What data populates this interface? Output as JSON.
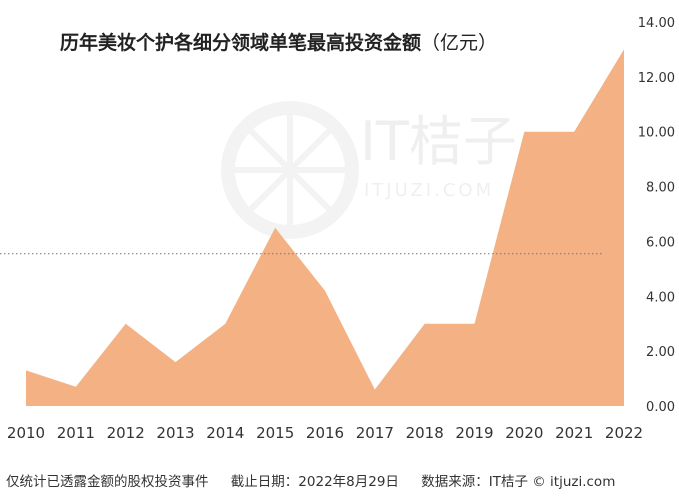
{
  "title": "历年美妆个护各细分领域单笔最高投资金额",
  "unit": "（亿元）",
  "watermark": {
    "brand": "IT桔子",
    "domain": "ITJUZI.COM"
  },
  "footer": {
    "note": "仅统计已透露金额的股权投资事件",
    "date": "截止日期：2022年8月29日",
    "source": "数据来源：IT桔子 © itjuzi.com"
  },
  "colors": {
    "area": "#f4b183",
    "axis_text": "#333333",
    "reference_line": "#777777"
  },
  "chart_data": {
    "type": "area",
    "title": "历年美妆个护各细分领域单笔最高投资金额（亿元）",
    "categories": [
      "2010",
      "2011",
      "2012",
      "2013",
      "2014",
      "2015",
      "2016",
      "2017",
      "2018",
      "2019",
      "2020",
      "2021",
      "2022"
    ],
    "values": [
      1.3,
      0.7,
      3.0,
      1.6,
      3.0,
      6.5,
      4.2,
      0.6,
      3.0,
      3.0,
      10.0,
      10.0,
      13.0
    ],
    "ylim": [
      0,
      14
    ],
    "yticks": [
      "0.00",
      "2.00",
      "4.00",
      "6.00",
      "8.00",
      "10.00",
      "12.00",
      "14.00"
    ],
    "reference_line": {
      "value": 5.55,
      "style": "dotted"
    },
    "grid": false,
    "y_axis_side": "right",
    "xlabel": "",
    "ylabel": ""
  }
}
